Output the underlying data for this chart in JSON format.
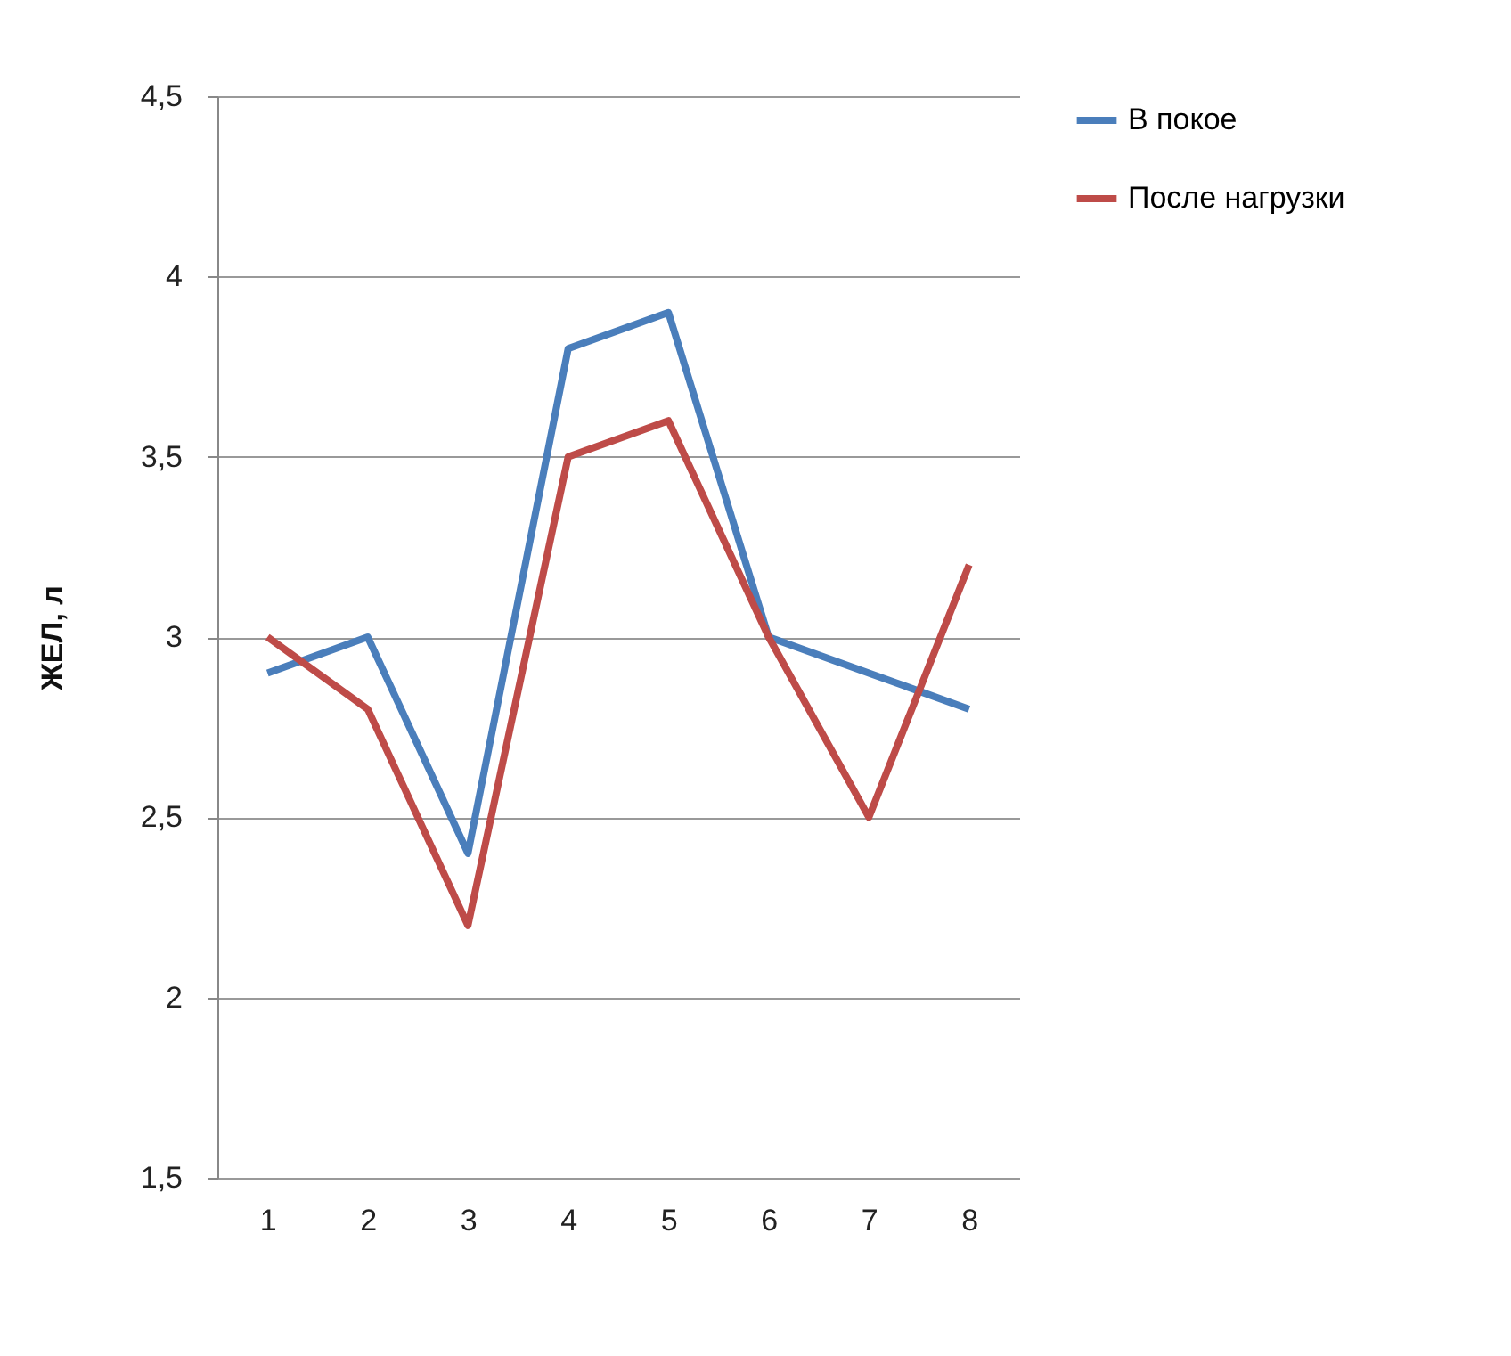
{
  "chart_data": {
    "type": "line",
    "ylabel": "ЖЕЛ, л",
    "categories": [
      "1",
      "2",
      "3",
      "4",
      "5",
      "6",
      "7",
      "8"
    ],
    "series": [
      {
        "name": "В покое",
        "color": "#4a7ebb",
        "values": [
          2.9,
          3.0,
          2.4,
          3.8,
          3.9,
          3.0,
          2.9,
          2.8
        ]
      },
      {
        "name": "После нагрузки",
        "color": "#be4b48",
        "values": [
          3.0,
          2.8,
          2.2,
          3.5,
          3.6,
          3.0,
          2.5,
          3.2
        ]
      }
    ],
    "ylim": [
      1.5,
      4.5
    ],
    "yticks": [
      {
        "value": 1.5,
        "label": "1,5"
      },
      2,
      {
        "value": 2.5,
        "label": "2,5"
      },
      3,
      {
        "value": 3.5,
        "label": "3,5"
      },
      4,
      {
        "value": 4.5,
        "label": "4,5"
      }
    ],
    "grid": "y",
    "legend": "right",
    "marker": "none",
    "line_style": "solid"
  }
}
